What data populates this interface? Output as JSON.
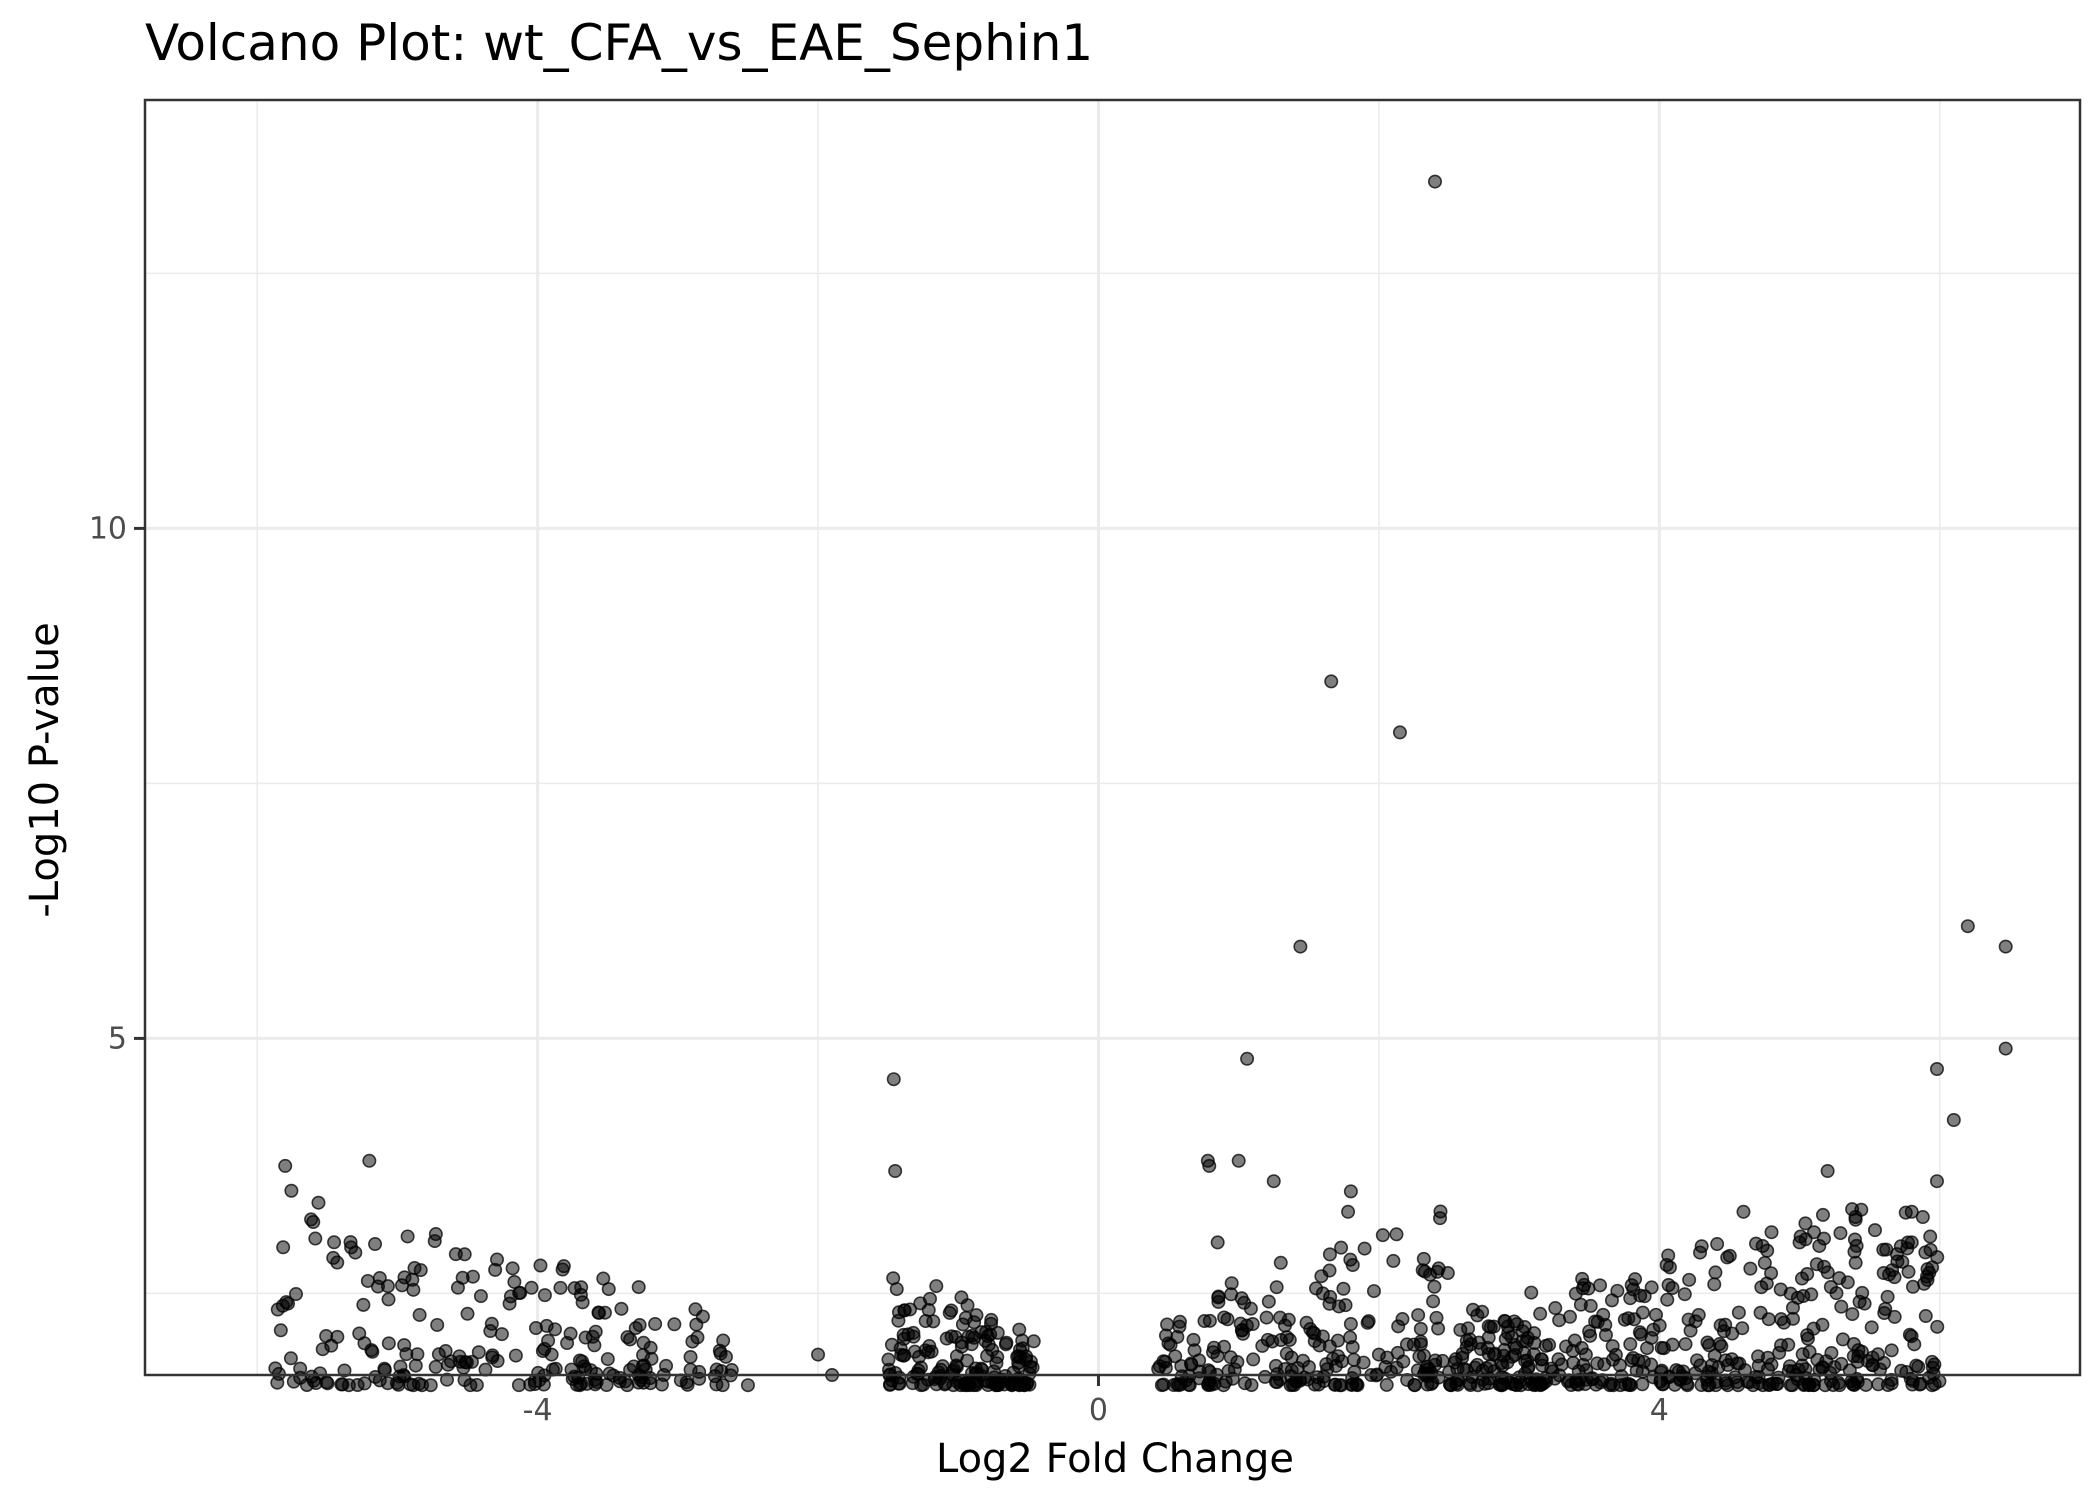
{
  "chart_data": {
    "type": "scatter",
    "title": "Volcano Plot: wt_CFA_vs_EAE_Sephin1",
    "xlabel": "Log2 Fold Change",
    "ylabel": "-Log10 P-value",
    "xlim": [
      -6.8,
      7.0
    ],
    "ylim": [
      1.7,
      14.2
    ],
    "x_ticks": [
      -4,
      0,
      4
    ],
    "x_tick_labels": [
      "-4",
      "0",
      "4"
    ],
    "y_ticks": [
      5,
      10
    ],
    "y_tick_labels": [
      "5",
      "10"
    ],
    "grid": true,
    "legend": "none",
    "point_color": "#000000",
    "point_alpha": 0.5,
    "x": [
      2.4,
      1.66,
      2.15,
      1.44,
      6.2,
      6.47,
      6.47,
      5.98,
      6.1,
      5.98,
      1.06,
      -1.46,
      -5.8,
      -5.2,
      -1.45,
      5.2,
      1.0,
      0.78,
      0.79,
      1.25,
      1.8,
      1.78,
      5.8,
      5.8,
      -5.6,
      -5.78,
      -5.3,
      -4.2,
      -4.5,
      -3.9,
      -3.1,
      -2.5,
      -2.0,
      -1.9,
      0.85,
      0.95,
      1.1,
      1.3,
      1.6,
      1.8,
      2.0,
      2.2,
      2.4,
      3.15,
      4.6,
      4.8,
      5.0,
      5.4,
      5.6
    ],
    "y": [
      13.4,
      8.5,
      8.0,
      5.9,
      6.1,
      5.9,
      4.9,
      4.7,
      4.2,
      3.6,
      4.8,
      4.6,
      3.75,
      3.8,
      3.7,
      3.7,
      3.8,
      3.8,
      3.75,
      3.6,
      3.5,
      3.3,
      3.3,
      3.0,
      3.2,
      2.4,
      2.9,
      2.4,
      2.3,
      1.9,
      1.7,
      1.6,
      1.9,
      1.7,
      3.0,
      2.6,
      2.2,
      2.8,
      2.5,
      2.2,
      1.9,
      2.0,
      1.8,
      2.3,
      3.3,
      3.1,
      3.0,
      2.8,
      2.7
    ],
    "clusters": [
      {
        "region": "left_outer",
        "count": 230,
        "x_range": [
          -5.9,
          -2.6
        ],
        "y_min": 1.6,
        "y_max": 3.6
      },
      {
        "region": "left_inner",
        "count": 170,
        "x_range": [
          -1.5,
          -0.45
        ],
        "y_min": 1.6,
        "y_max": 2.9
      },
      {
        "region": "right_inner",
        "count": 210,
        "x_range": [
          0.42,
          2.5
        ],
        "y_min": 1.6,
        "y_max": 3.5
      },
      {
        "region": "right_outer",
        "count": 470,
        "x_range": [
          2.5,
          6.0
        ],
        "y_min": 1.6,
        "y_max": 3.6
      }
    ]
  }
}
